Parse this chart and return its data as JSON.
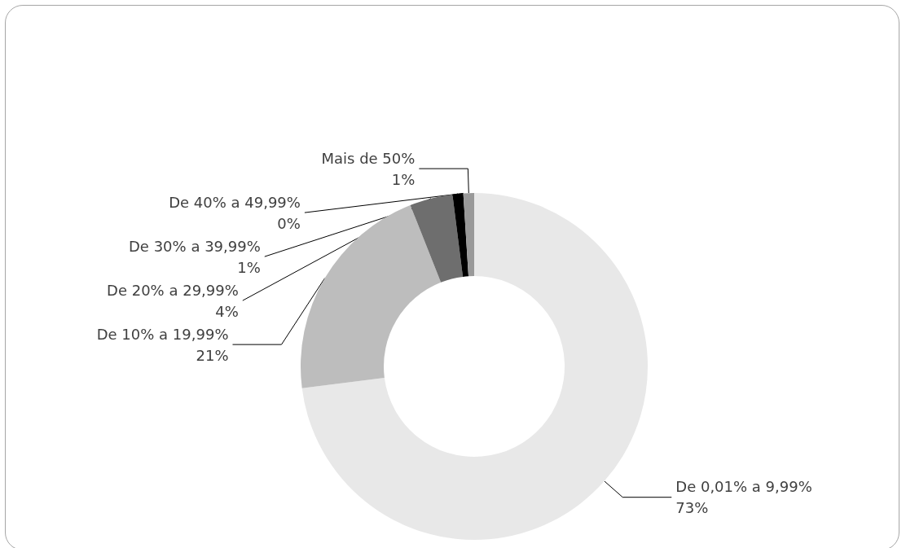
{
  "chart_data": {
    "type": "donut",
    "categories": [
      "De 0,01% a 9,99%",
      "De 10% a 19,99%",
      "De 20% a 29,99%",
      "De 30% a 39,99%",
      "De 40% a 49,99%",
      "Mais de 50%"
    ],
    "values": [
      73,
      21,
      4,
      1,
      0,
      1
    ],
    "value_labels": [
      "73%",
      "21%",
      "4%",
      "1%",
      "0%",
      "1%"
    ],
    "colors": [
      "#e8e8e8",
      "#bdbdbd",
      "#6e6e6e",
      "#000000",
      "#404040",
      "#999999"
    ],
    "legend": false
  }
}
